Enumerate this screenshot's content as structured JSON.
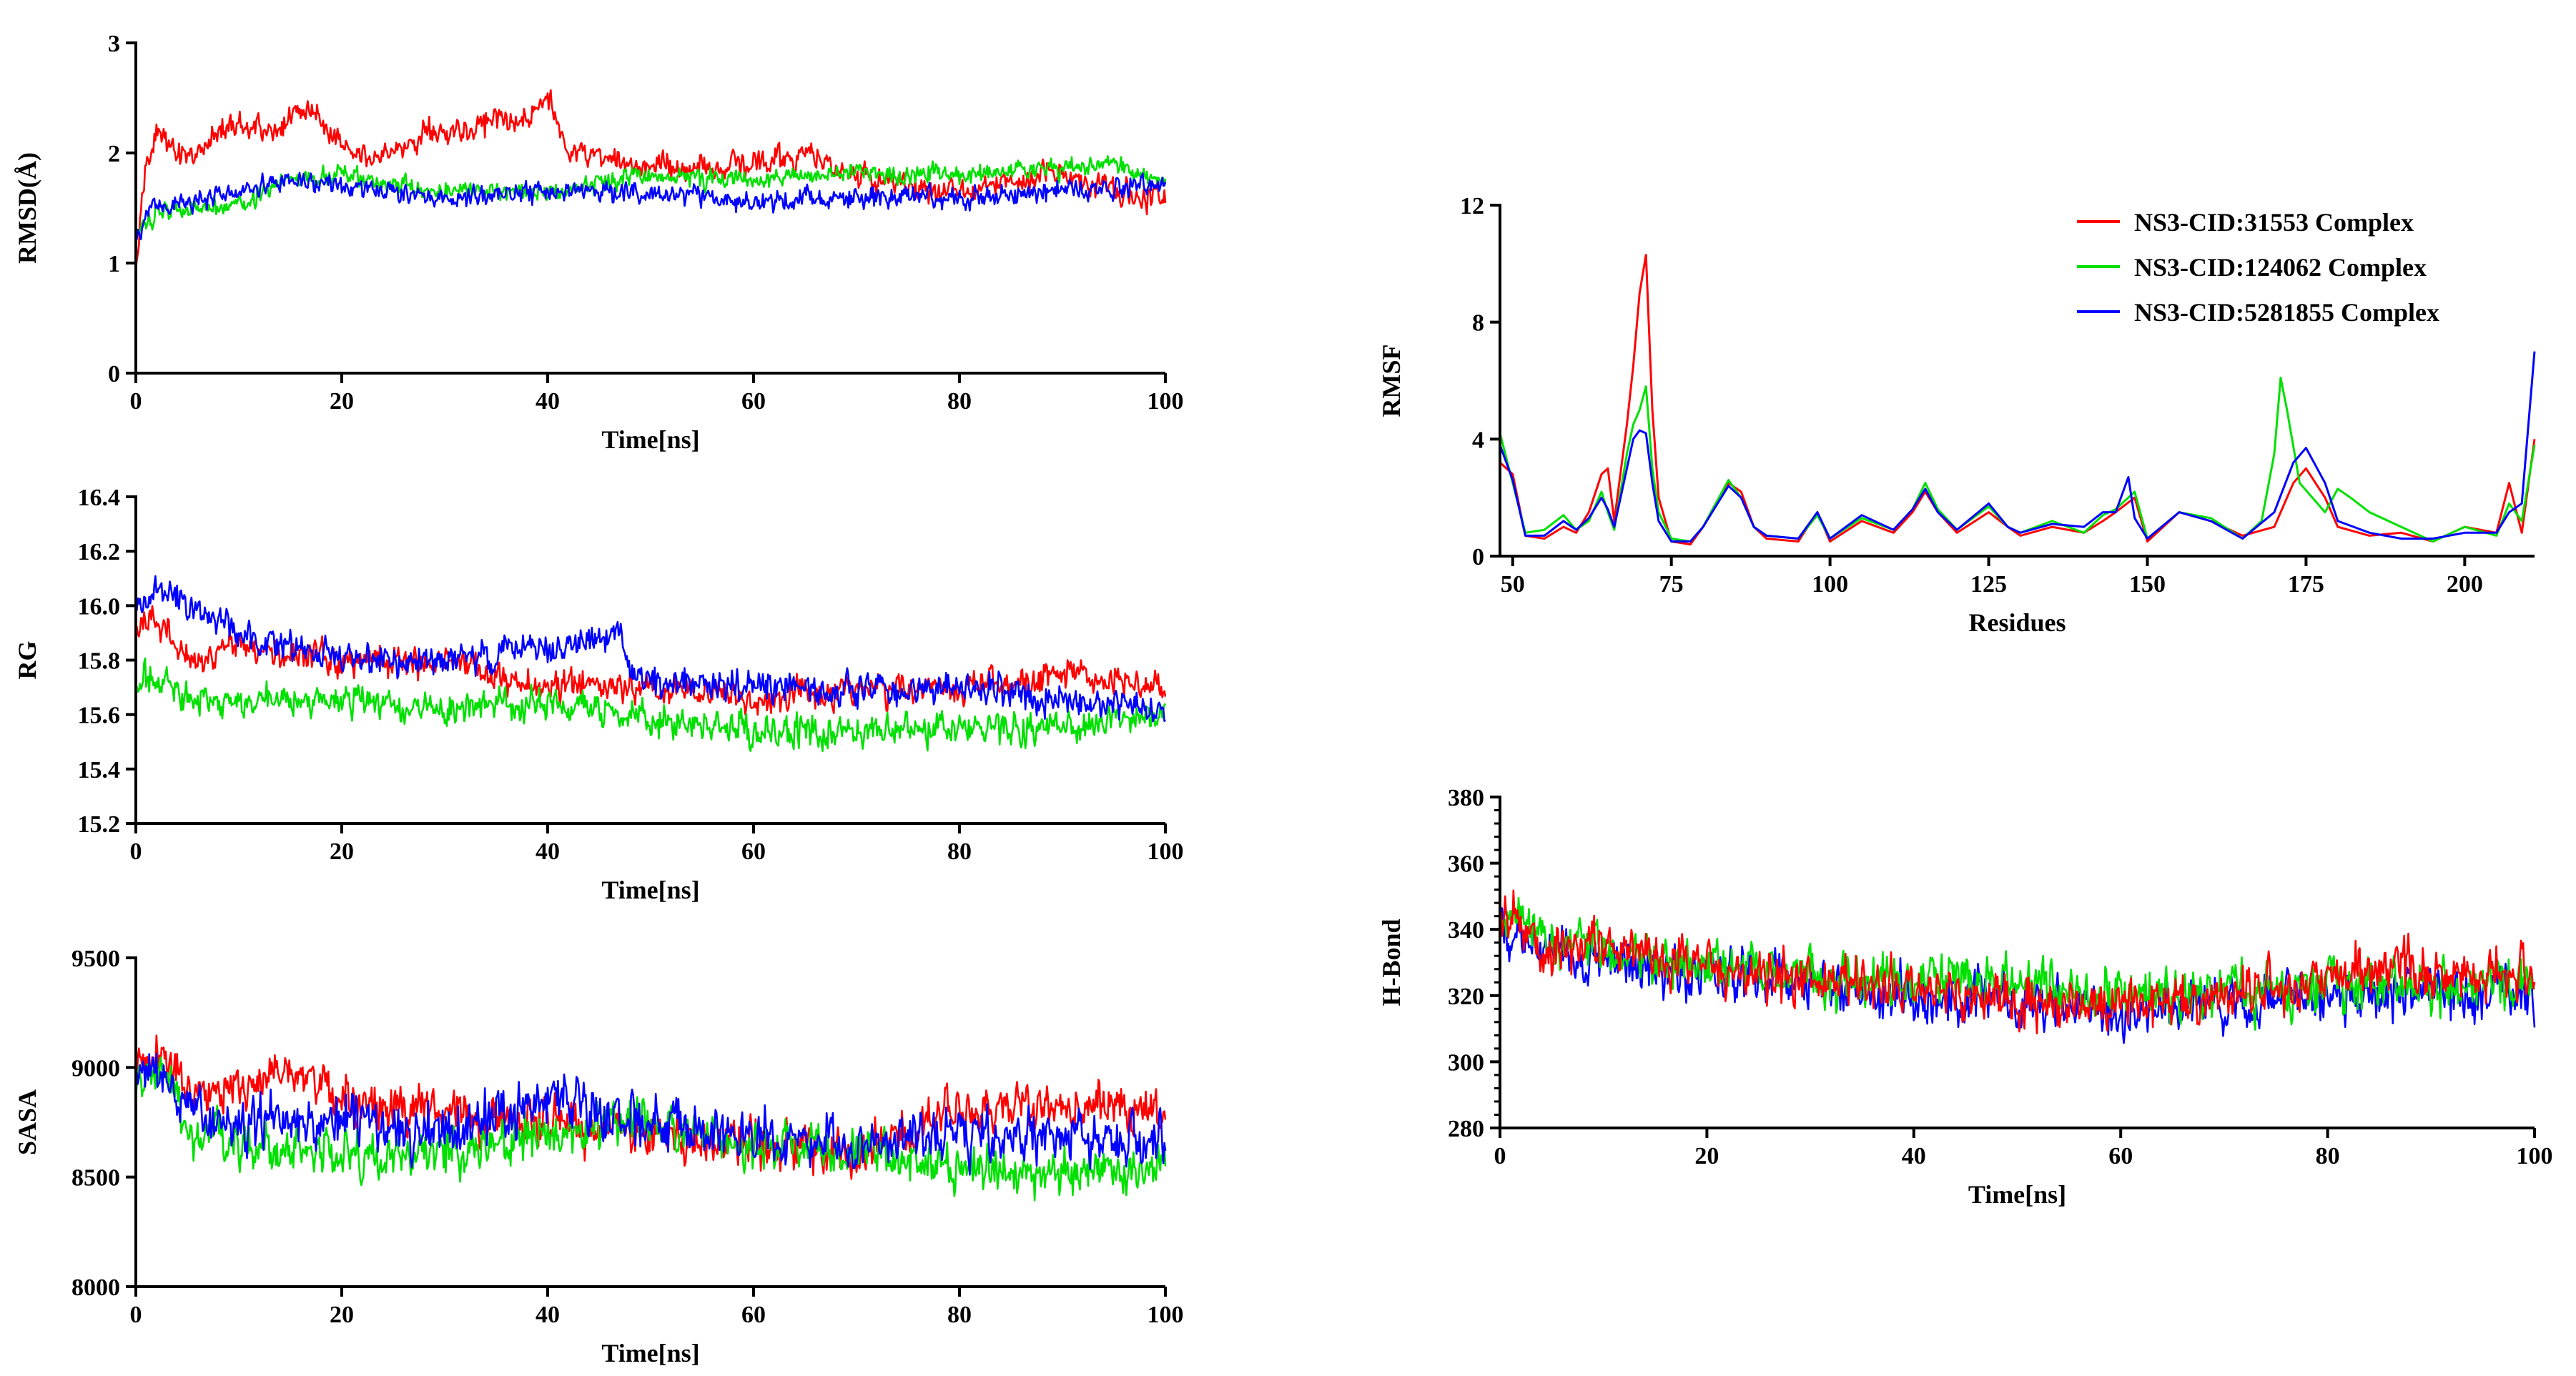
{
  "colors": {
    "red": "#ff0000",
    "green": "#00e000",
    "blue": "#0000ff"
  },
  "legend": [
    {
      "label": "NS3-CID:31553 Complex",
      "color": "#ff0000"
    },
    {
      "label": "NS3-CID:124062 Complex",
      "color": "#00e000"
    },
    {
      "label": "NS3-CID:5281855 Complex",
      "color": "#0000ff"
    }
  ],
  "chart_data": [
    {
      "id": "rmsd",
      "type": "line",
      "title": "",
      "xlabel": "Time[ns]",
      "ylabel": "RMSD(Å)",
      "xlim": [
        0,
        100
      ],
      "ylim": [
        0,
        3
      ],
      "xticks": [
        0,
        20,
        40,
        60,
        80,
        100
      ],
      "yticks": [
        0,
        1,
        2,
        3
      ],
      "ytick_labels": [
        "0",
        "1",
        "2",
        "3"
      ],
      "series": [
        {
          "name": "NS3-CID:31553 Complex",
          "color": "#ff0000",
          "noise": 0.12,
          "x": [
            0,
            1,
            2,
            4,
            6,
            8,
            10,
            12,
            14,
            16,
            18,
            20,
            22,
            25,
            28,
            30,
            32,
            35,
            38,
            40,
            42,
            45,
            50,
            55,
            60,
            65,
            70,
            75,
            80,
            85,
            90,
            95,
            100
          ],
          "y": [
            0.9,
            1.9,
            2.2,
            2.0,
            2.0,
            2.2,
            2.3,
            2.2,
            2.2,
            2.4,
            2.3,
            2.1,
            2.0,
            2.0,
            2.2,
            2.2,
            2.2,
            2.3,
            2.3,
            2.5,
            2.0,
            2.0,
            1.85,
            1.85,
            1.9,
            2.0,
            1.8,
            1.7,
            1.65,
            1.75,
            1.85,
            1.65,
            1.6
          ]
        },
        {
          "name": "NS3-CID:124062 Complex",
          "color": "#00e000",
          "noise": 0.09,
          "x": [
            0,
            1,
            3,
            5,
            10,
            15,
            20,
            25,
            30,
            40,
            50,
            60,
            70,
            75,
            80,
            90,
            95,
            100
          ],
          "y": [
            1.2,
            1.4,
            1.5,
            1.5,
            1.55,
            1.75,
            1.8,
            1.7,
            1.65,
            1.65,
            1.8,
            1.75,
            1.85,
            1.8,
            1.8,
            1.85,
            1.9,
            1.75
          ]
        },
        {
          "name": "NS3-CID:5281855 Complex",
          "color": "#0000ff",
          "noise": 0.1,
          "x": [
            0,
            1,
            3,
            5,
            10,
            15,
            20,
            25,
            30,
            40,
            50,
            60,
            70,
            80,
            90,
            100
          ],
          "y": [
            1.2,
            1.45,
            1.55,
            1.55,
            1.65,
            1.75,
            1.7,
            1.65,
            1.6,
            1.65,
            1.65,
            1.55,
            1.6,
            1.6,
            1.65,
            1.7
          ]
        }
      ]
    },
    {
      "id": "rg",
      "type": "line",
      "title": "",
      "xlabel": "Time[ns]",
      "ylabel": "RG",
      "xlim": [
        0,
        100
      ],
      "ylim": [
        15.2,
        16.4
      ],
      "xticks": [
        0,
        20,
        40,
        60,
        80,
        100
      ],
      "yticks": [
        15.2,
        15.4,
        15.6,
        15.8,
        16.0,
        16.2,
        16.4
      ],
      "ytick_labels": [
        "15.2",
        "15.4",
        "15.6",
        "15.8",
        "16.0",
        "16.2",
        "16.4"
      ],
      "series": [
        {
          "name": "NS3-CID:31553 Complex",
          "color": "#ff0000",
          "noise": 0.06,
          "x": [
            0,
            2,
            5,
            10,
            20,
            30,
            40,
            50,
            60,
            70,
            80,
            90,
            100
          ],
          "y": [
            15.9,
            15.95,
            15.8,
            15.85,
            15.8,
            15.8,
            15.7,
            15.7,
            15.65,
            15.7,
            15.7,
            15.75,
            15.7
          ]
        },
        {
          "name": "NS3-CID:124062 Complex",
          "color": "#00e000",
          "noise": 0.06,
          "x": [
            0,
            2,
            5,
            10,
            20,
            30,
            40,
            50,
            60,
            70,
            80,
            90,
            100
          ],
          "y": [
            15.7,
            15.75,
            15.65,
            15.65,
            15.65,
            15.62,
            15.65,
            15.58,
            15.55,
            15.53,
            15.55,
            15.55,
            15.6
          ]
        },
        {
          "name": "NS3-CID:5281855 Complex",
          "color": "#0000ff",
          "noise": 0.06,
          "x": [
            0,
            2,
            5,
            10,
            20,
            30,
            40,
            47,
            48,
            50,
            60,
            70,
            80,
            90,
            100
          ],
          "y": [
            16.0,
            16.05,
            16.0,
            15.9,
            15.8,
            15.8,
            15.85,
            15.9,
            15.75,
            15.72,
            15.7,
            15.68,
            15.7,
            15.65,
            15.62
          ]
        }
      ]
    },
    {
      "id": "sasa",
      "type": "line",
      "title": "",
      "xlabel": "Time[ns]",
      "ylabel": "SASA",
      "xlim": [
        0,
        100
      ],
      "ylim": [
        8000,
        9500
      ],
      "xticks": [
        0,
        20,
        40,
        60,
        80,
        100
      ],
      "yticks": [
        8000,
        8500,
        9000,
        9500
      ],
      "ytick_labels": [
        "8000",
        "8500",
        "9000",
        "9500"
      ],
      "series": [
        {
          "name": "NS3-CID:31553 Complex",
          "color": "#ff0000",
          "noise": 110,
          "x": [
            0,
            3,
            5,
            10,
            15,
            20,
            25,
            30,
            40,
            50,
            60,
            70,
            75,
            80,
            90,
            100
          ],
          "y": [
            9000,
            9050,
            8900,
            8900,
            9000,
            8850,
            8800,
            8800,
            8750,
            8700,
            8650,
            8600,
            8700,
            8800,
            8850,
            8800
          ]
        },
        {
          "name": "NS3-CID:124062 Complex",
          "color": "#00e000",
          "noise": 110,
          "x": [
            0,
            3,
            5,
            10,
            20,
            30,
            40,
            50,
            60,
            70,
            80,
            90,
            100
          ],
          "y": [
            8900,
            9000,
            8700,
            8650,
            8600,
            8600,
            8700,
            8750,
            8650,
            8600,
            8550,
            8500,
            8550
          ]
        },
        {
          "name": "NS3-CID:5281855 Complex",
          "color": "#0000ff",
          "noise": 120,
          "x": [
            0,
            3,
            5,
            10,
            20,
            30,
            40,
            50,
            60,
            70,
            80,
            90,
            100
          ],
          "y": [
            9000,
            8950,
            8800,
            8750,
            8750,
            8700,
            8850,
            8750,
            8700,
            8650,
            8700,
            8700,
            8650
          ]
        }
      ]
    },
    {
      "id": "rmsf",
      "type": "line",
      "title": "",
      "xlabel": "Residues",
      "ylabel": "RMSF",
      "xlim": [
        48,
        211
      ],
      "ylim": [
        0,
        12
      ],
      "xticks": [
        50,
        75,
        100,
        125,
        150,
        175,
        200
      ],
      "yticks": [
        0,
        4,
        8,
        12
      ],
      "ytick_labels": [
        "0",
        "4",
        "8",
        "12"
      ],
      "legend_position": "top-right",
      "series": [
        {
          "name": "NS3-CID:31553 Complex",
          "color": "#ff0000",
          "x": [
            48,
            50,
            52,
            55,
            58,
            60,
            62,
            64,
            65,
            66,
            68,
            69,
            70,
            71,
            72,
            73,
            75,
            78,
            80,
            82,
            84,
            86,
            88,
            90,
            95,
            98,
            100,
            105,
            110,
            113,
            115,
            117,
            120,
            125,
            128,
            130,
            135,
            140,
            143,
            145,
            148,
            150,
            155,
            160,
            165,
            170,
            173,
            175,
            178,
            180,
            185,
            190,
            195,
            200,
            205,
            207,
            209,
            211
          ],
          "y": [
            3.2,
            2.8,
            0.7,
            0.6,
            1.0,
            0.8,
            1.5,
            2.8,
            3.0,
            1.2,
            4.5,
            6.5,
            9.0,
            10.3,
            5.0,
            2.0,
            0.5,
            0.4,
            1.0,
            1.8,
            2.5,
            2.2,
            1.0,
            0.6,
            0.5,
            1.5,
            0.5,
            1.2,
            0.8,
            1.5,
            2.2,
            1.5,
            0.8,
            1.5,
            1.0,
            0.7,
            1.0,
            0.8,
            1.2,
            1.5,
            2.0,
            0.5,
            1.5,
            1.2,
            0.7,
            1.0,
            2.5,
            3.0,
            2.0,
            1.0,
            0.7,
            0.8,
            0.5,
            1.0,
            0.8,
            2.5,
            0.8,
            4.0
          ]
        },
        {
          "name": "NS3-CID:124062 Complex",
          "color": "#00e000",
          "x": [
            48,
            50,
            52,
            55,
            58,
            60,
            62,
            64,
            65,
            66,
            68,
            69,
            70,
            71,
            72,
            73,
            75,
            78,
            80,
            82,
            84,
            86,
            88,
            90,
            95,
            98,
            100,
            105,
            110,
            113,
            115,
            117,
            120,
            125,
            128,
            130,
            135,
            140,
            143,
            145,
            148,
            150,
            155,
            160,
            165,
            168,
            170,
            171,
            172,
            174,
            178,
            180,
            182,
            185,
            190,
            195,
            200,
            205,
            207,
            209,
            211
          ],
          "y": [
            4.2,
            2.5,
            0.8,
            0.9,
            1.4,
            0.9,
            1.2,
            2.2,
            1.5,
            0.9,
            3.5,
            4.5,
            5.0,
            5.8,
            3.0,
            1.5,
            0.6,
            0.5,
            1.0,
            1.8,
            2.6,
            2.0,
            1.0,
            0.7,
            0.6,
            1.4,
            0.6,
            1.3,
            0.9,
            1.6,
            2.5,
            1.6,
            0.9,
            1.7,
            1.0,
            0.8,
            1.2,
            0.8,
            1.4,
            1.6,
            2.2,
            0.6,
            1.5,
            1.3,
            0.6,
            1.2,
            3.5,
            6.1,
            5.0,
            2.5,
            1.5,
            2.3,
            2.0,
            1.5,
            1.0,
            0.5,
            1.0,
            0.7,
            1.8,
            1.2,
            3.8
          ]
        },
        {
          "name": "NS3-CID:5281855 Complex",
          "color": "#0000ff",
          "x": [
            48,
            50,
            52,
            55,
            58,
            60,
            62,
            64,
            65,
            66,
            68,
            69,
            70,
            71,
            72,
            73,
            75,
            78,
            80,
            82,
            84,
            86,
            88,
            90,
            95,
            98,
            100,
            105,
            110,
            113,
            115,
            117,
            120,
            125,
            128,
            130,
            135,
            140,
            143,
            145,
            147,
            148,
            150,
            155,
            160,
            165,
            170,
            173,
            175,
            178,
            180,
            185,
            190,
            195,
            200,
            205,
            207,
            209,
            211
          ],
          "y": [
            3.8,
            2.6,
            0.7,
            0.7,
            1.2,
            0.9,
            1.3,
            2.0,
            1.6,
            1.0,
            3.0,
            4.0,
            4.3,
            4.2,
            2.5,
            1.2,
            0.5,
            0.5,
            1.0,
            1.7,
            2.4,
            2.0,
            1.0,
            0.7,
            0.6,
            1.5,
            0.6,
            1.4,
            0.9,
            1.6,
            2.3,
            1.5,
            0.9,
            1.8,
            1.0,
            0.8,
            1.1,
            1.0,
            1.5,
            1.5,
            2.7,
            1.3,
            0.6,
            1.5,
            1.2,
            0.6,
            1.5,
            3.2,
            3.7,
            2.5,
            1.2,
            0.8,
            0.6,
            0.6,
            0.8,
            0.8,
            1.5,
            1.8,
            7.0
          ]
        }
      ]
    },
    {
      "id": "hbond",
      "type": "line",
      "title": "",
      "xlabel": "Time[ns]",
      "ylabel": "H-Bond",
      "xlim": [
        0,
        100
      ],
      "ylim": [
        280,
        380
      ],
      "xticks": [
        0,
        20,
        40,
        60,
        80,
        100
      ],
      "yticks": [
        280,
        300,
        320,
        340,
        360,
        380
      ],
      "ytick_labels": [
        "280",
        "300",
        "320",
        "340",
        "360",
        "380"
      ],
      "series": [
        {
          "name": "NS3-CID:5281855 Complex",
          "color": "#0000ff",
          "noise": 8,
          "x": [
            0,
            1,
            5,
            10,
            20,
            30,
            40,
            50,
            60,
            70,
            80,
            90,
            100
          ],
          "y": [
            345,
            340,
            333,
            330,
            327,
            323,
            320,
            318,
            315,
            318,
            320,
            322,
            320
          ]
        },
        {
          "name": "NS3-CID:124062 Complex",
          "color": "#00e000",
          "noise": 8,
          "x": [
            0,
            1,
            5,
            10,
            20,
            30,
            40,
            50,
            60,
            70,
            80,
            90,
            100
          ],
          "y": [
            340,
            345,
            335,
            333,
            330,
            325,
            325,
            325,
            320,
            322,
            322,
            323,
            322
          ]
        },
        {
          "name": "NS3-CID:31553 Complex",
          "color": "#ff0000",
          "noise": 8,
          "x": [
            0,
            1,
            5,
            10,
            20,
            30,
            40,
            50,
            60,
            70,
            80,
            85,
            90,
            100
          ],
          "y": [
            342,
            345,
            335,
            335,
            328,
            325,
            322,
            318,
            317,
            320,
            325,
            330,
            328,
            325
          ]
        }
      ]
    }
  ]
}
